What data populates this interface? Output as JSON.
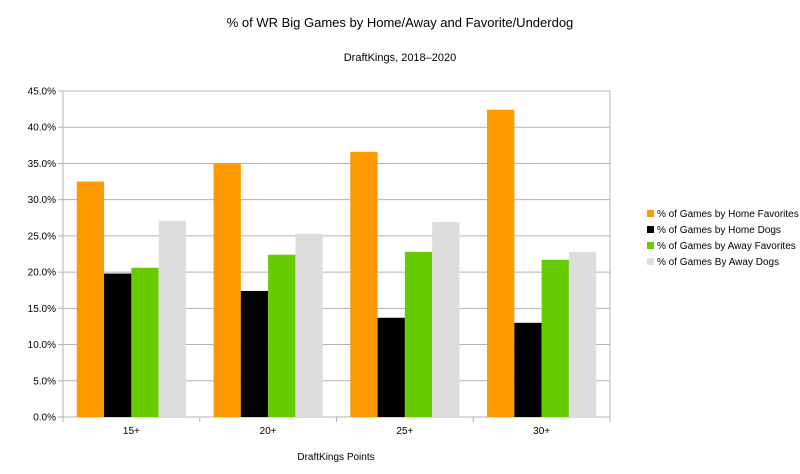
{
  "chart_data": {
    "type": "bar",
    "title": "% of WR Big Games by Home/Away and Favorite/Underdog",
    "subtitle": "DraftKings, 2018–2020",
    "xlabel": "DraftKings Points",
    "ylabel": "",
    "categories": [
      "15+",
      "20+",
      "25+",
      "30+"
    ],
    "ylim": [
      0,
      45
    ],
    "yticks": [
      0,
      5,
      10,
      15,
      20,
      25,
      30,
      35,
      40,
      45
    ],
    "ytick_labels": [
      "0.0%",
      "5.0%",
      "10.0%",
      "15.0%",
      "20.0%",
      "25.0%",
      "30.0%",
      "35.0%",
      "40.0%",
      "45.0%"
    ],
    "grid": "horizontal",
    "legend_position": "right",
    "series": [
      {
        "name": "% of Games by Home Favorites",
        "color": "#ff9900",
        "values": [
          32.5,
          35.0,
          36.6,
          42.4
        ]
      },
      {
        "name": "% of Games by Home Dogs",
        "color": "#000000",
        "values": [
          19.8,
          17.4,
          13.7,
          13.0
        ]
      },
      {
        "name": "% of Games by Away Favorites",
        "color": "#66cc00",
        "values": [
          20.6,
          22.4,
          22.8,
          21.7
        ]
      },
      {
        "name": "% of Games By Away Dogs",
        "color": "#dddddd",
        "values": [
          27.1,
          25.3,
          26.9,
          22.8
        ]
      }
    ]
  }
}
